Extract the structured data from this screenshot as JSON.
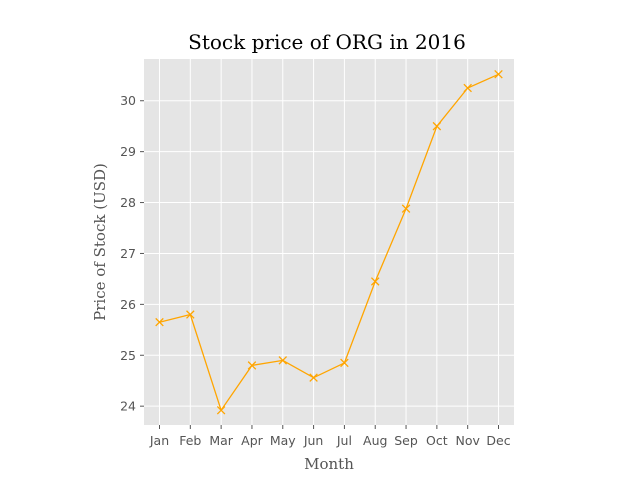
{
  "chart_data": {
    "type": "line",
    "title": "Stock price of ORG in 2016",
    "xlabel": "Month",
    "ylabel": "Price of Stock (USD)",
    "categories": [
      "Jan",
      "Feb",
      "Mar",
      "Apr",
      "May",
      "Jun",
      "Jul",
      "Aug",
      "Sep",
      "Oct",
      "Nov",
      "Dec"
    ],
    "series": [
      {
        "values": [
          25.65,
          25.8,
          23.92,
          24.8,
          24.9,
          24.56,
          24.85,
          26.45,
          27.88,
          29.5,
          30.25,
          30.52
        ],
        "color": "#ffa500",
        "marker": "x"
      }
    ],
    "yticks": [
      24,
      25,
      26,
      27,
      28,
      29,
      30
    ],
    "ylim": [
      23.63,
      30.82
    ],
    "grid": true,
    "background": "#e5e5e5"
  }
}
